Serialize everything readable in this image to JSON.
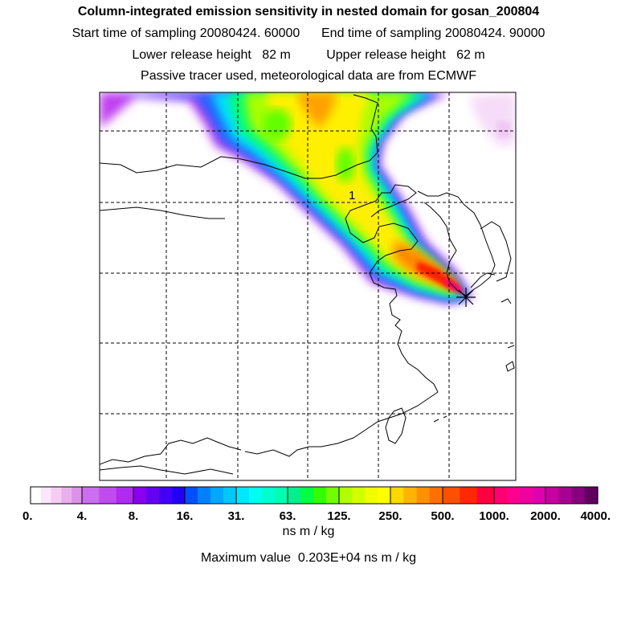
{
  "header": {
    "title": "Column-integrated emission sensitivity in nested domain for gosan_200804",
    "sampling": "Start time of sampling 20080424. 60000      End time of sampling 20080424. 90000",
    "release": "Lower release height   82 m          Upper release height   62 m",
    "tracer": "Passive tracer used, meteorological data are from ECMWF"
  },
  "map": {
    "contour_label": "1",
    "receptor_marker": "star-marker"
  },
  "colorbar": {
    "tick_labels": [
      "0.",
      "4.",
      "8.",
      "16.",
      "31.",
      "63.",
      "125.",
      "250.",
      "500.",
      "1000.",
      "2000.",
      "4000."
    ],
    "colors": [
      [
        "#ffffff",
        "#fbe6fb",
        "#f4ccf4",
        "#eab0ee",
        "#dc92e8"
      ],
      [
        "#cc6ef0",
        "#c04cf0",
        "#b02af2"
      ],
      [
        "#8a00f0",
        "#6600f0",
        "#4400f4",
        "#2200f6"
      ],
      [
        "#0050ff",
        "#0080ff",
        "#00a8ff",
        "#00c8ff"
      ],
      [
        "#00e8ff",
        "#00fff0",
        "#00ffd0",
        "#00ffb0"
      ],
      [
        "#00f090",
        "#00ff40",
        "#30ff00",
        "#70ff00"
      ],
      [
        "#b0ff00",
        "#d0ff00",
        "#f0ff00",
        "#ffff00"
      ],
      [
        "#ffd800",
        "#ffb400",
        "#ff9000",
        "#ff7000"
      ],
      [
        "#ff5000",
        "#ff2800",
        "#ff0040"
      ],
      [
        "#ff0070",
        "#ff0090",
        "#f000a0",
        "#e000b0"
      ],
      [
        "#c800a0",
        "#a80090",
        "#880080",
        "#600060"
      ]
    ],
    "unit": "ns m / kg"
  },
  "footer": {
    "max_value": "Maximum value  0.203E+04 ns m / kg"
  }
}
